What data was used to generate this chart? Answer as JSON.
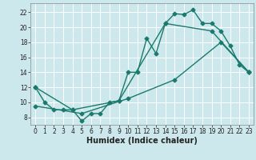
{
  "title": "",
  "xlabel": "Humidex (Indice chaleur)",
  "bg_color": "#cce8ec",
  "line_color": "#1a7a6e",
  "xlim": [
    -0.5,
    23.5
  ],
  "ylim": [
    7.0,
    23.2
  ],
  "xticks": [
    0,
    1,
    2,
    3,
    4,
    5,
    6,
    7,
    8,
    9,
    10,
    11,
    12,
    13,
    14,
    15,
    16,
    17,
    18,
    19,
    20,
    21,
    22,
    23
  ],
  "yticks": [
    8,
    10,
    12,
    14,
    16,
    18,
    20,
    22
  ],
  "line1_x": [
    0,
    1,
    2,
    3,
    4,
    5,
    6,
    7,
    8,
    9,
    10,
    11,
    12,
    13,
    14,
    15,
    16,
    17,
    18,
    19,
    20,
    21,
    22,
    23
  ],
  "line1_y": [
    12,
    10,
    9,
    9,
    9,
    7.5,
    8.5,
    8.5,
    10,
    10.2,
    14,
    14,
    18.5,
    16.5,
    20.5,
    21.8,
    21.7,
    22.3,
    20.5,
    20.5,
    19.5,
    17.5,
    15,
    14
  ],
  "line2_x": [
    0,
    4,
    9,
    14,
    19,
    23
  ],
  "line2_y": [
    12,
    9.0,
    10.2,
    20.5,
    19.5,
    14
  ],
  "line3_x": [
    0,
    5,
    10,
    15,
    20,
    23
  ],
  "line3_y": [
    9.5,
    8.5,
    10.5,
    13,
    18,
    14
  ],
  "grid_color": "#ffffff",
  "marker": "D",
  "marker_size": 2.5,
  "linewidth": 1.0,
  "tick_fontsize": 5.5,
  "xlabel_fontsize": 7.0
}
